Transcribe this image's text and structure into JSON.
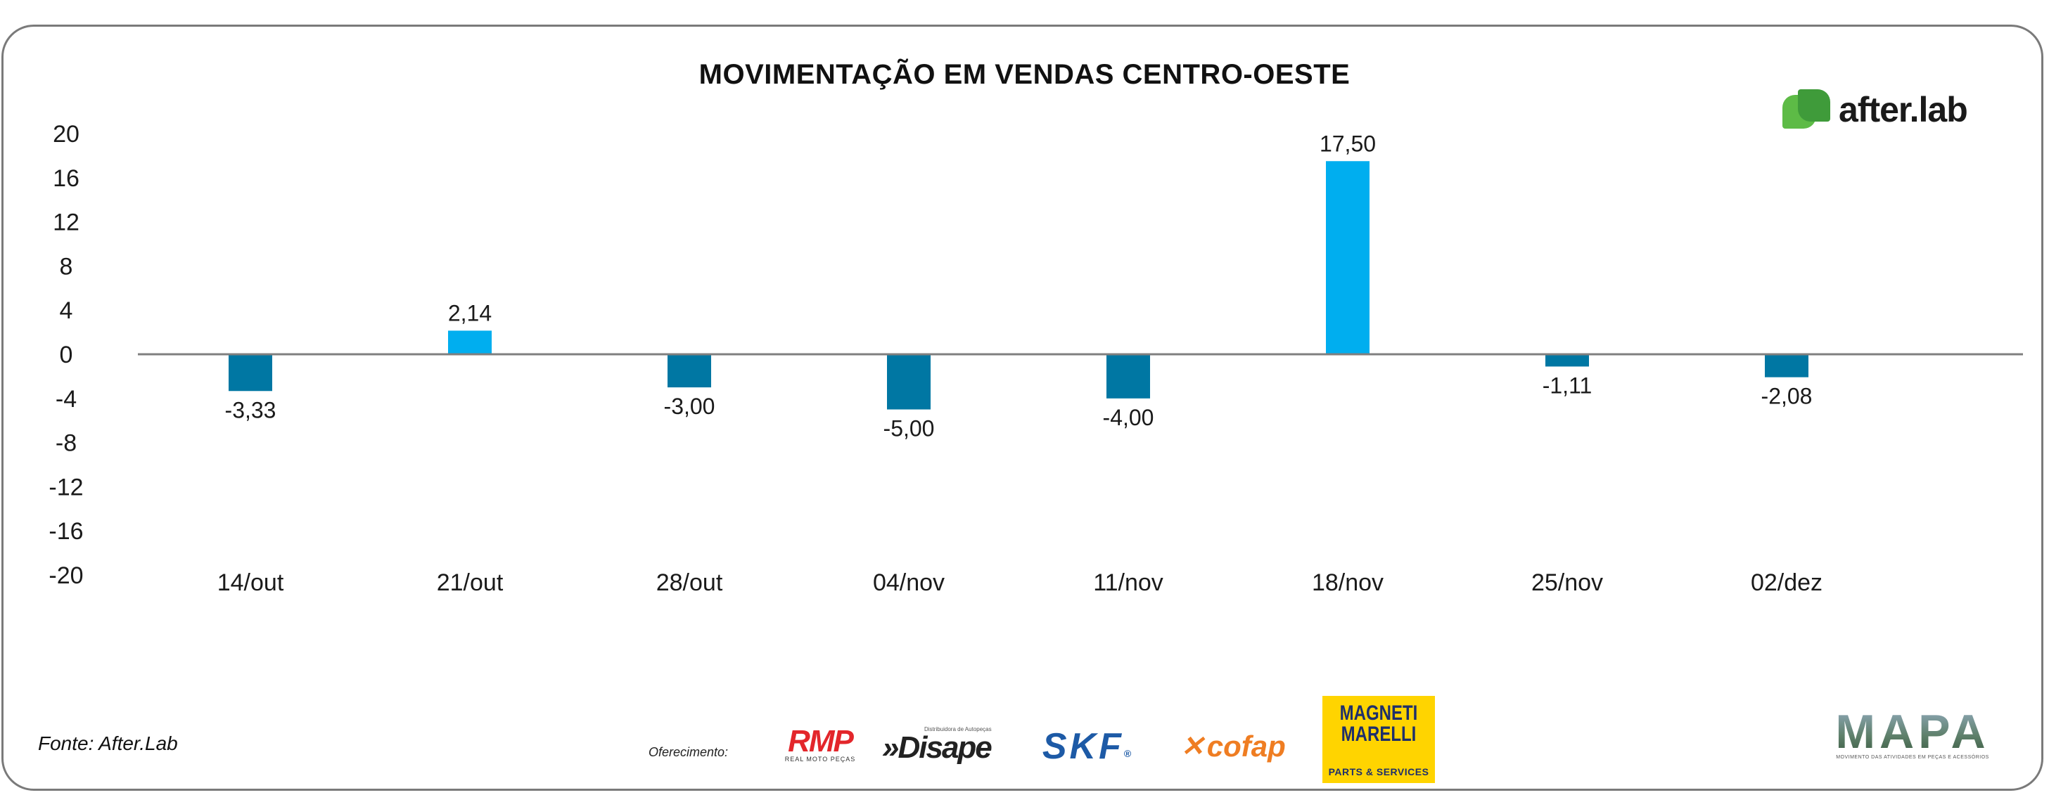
{
  "chart_data": {
    "type": "bar",
    "title": "MOVIMENTAÇÃO EM VENDAS CENTRO-OESTE",
    "categories": [
      "14/out",
      "21/out",
      "28/out",
      "04/nov",
      "11/nov",
      "18/nov",
      "25/nov",
      "02/dez"
    ],
    "values": [
      -3.33,
      2.14,
      -3.0,
      -5.0,
      -4.0,
      17.5,
      -1.11,
      -2.08
    ],
    "data_labels": [
      "-3,33",
      "2,14",
      "-3,00",
      "-5,00",
      "-4,00",
      "17,50",
      "-1,11",
      "-2,08"
    ],
    "yticks": [
      20,
      16,
      12,
      8,
      4,
      0,
      -4,
      -8,
      -12,
      -16,
      -20
    ],
    "ytick_labels": [
      "20",
      "16",
      "12",
      "8",
      "4",
      "0",
      "-4",
      "-8",
      "-12",
      "-16",
      "-20"
    ],
    "ylim": [
      -20,
      20
    ],
    "colors": {
      "positive": "#00aeef",
      "negative": "#0077a3",
      "axis": "#7f7f7f",
      "text": "#1a1a1a"
    },
    "xlabel": "",
    "ylabel": "",
    "grid": false
  },
  "branding": {
    "logo_text": "after.lab"
  },
  "footer": {
    "source": "Fonte: After.Lab",
    "offer_label": "Oferecimento:",
    "sponsors": {
      "rmp": "RMP",
      "rmp_sub": "REAL MOTO PEÇAS",
      "disape": "»Disape",
      "disape_sub": "Distribuidora de Autopeças",
      "skf": "SKF",
      "skf_mark": "®",
      "cofap": "cofap",
      "magneti": "MAGNETI MARELLI",
      "magneti_sub": "PARTS & SERVICES",
      "mapa": "MAPA",
      "mapa_sub": "MOVIMENTO DAS ATIVIDADES EM PEÇAS E ACESSÓRIOS"
    }
  }
}
